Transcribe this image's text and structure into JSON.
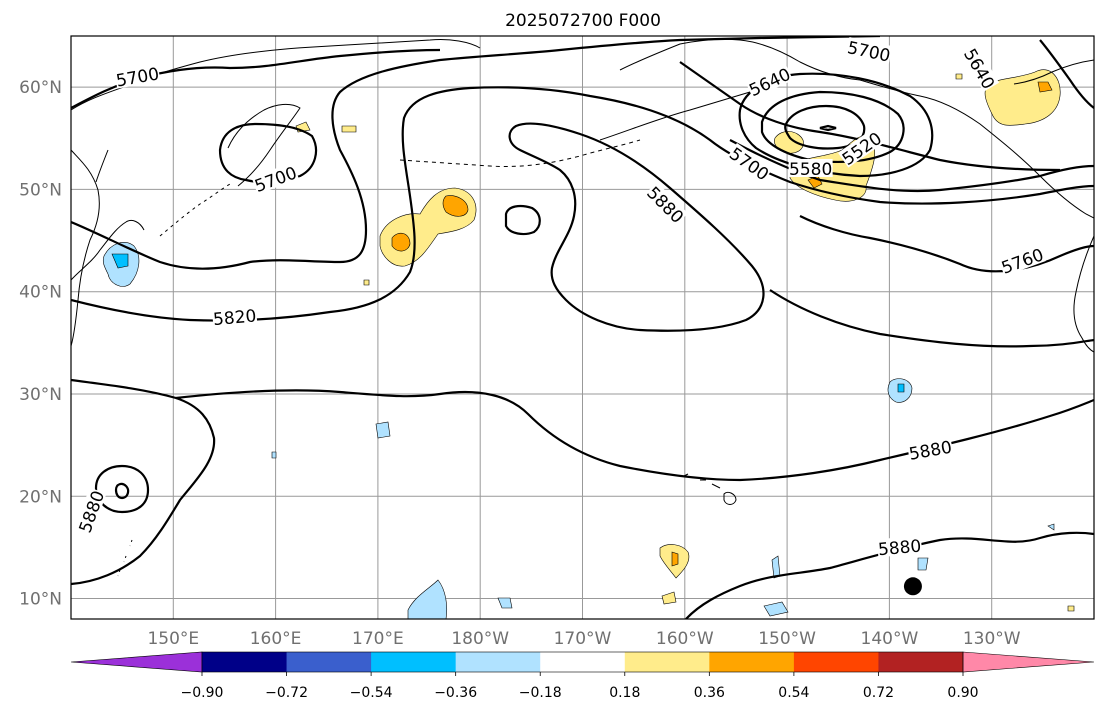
{
  "title": "2025072700 F000",
  "map": {
    "lon_ticks": [
      {
        "lon": 150,
        "label": "150°E"
      },
      {
        "lon": 160,
        "label": "160°E"
      },
      {
        "lon": 170,
        "label": "170°E"
      },
      {
        "lon": 180,
        "label": "180°W"
      },
      {
        "lon": 190,
        "label": "170°W"
      },
      {
        "lon": 200,
        "label": "160°W"
      },
      {
        "lon": 210,
        "label": "150°W"
      },
      {
        "lon": 220,
        "label": "140°W"
      },
      {
        "lon": 230,
        "label": "130°W"
      }
    ],
    "lat_ticks": [
      {
        "lat": 10,
        "label": "10°N"
      },
      {
        "lat": 20,
        "label": "20°N"
      },
      {
        "lat": 30,
        "label": "30°N"
      },
      {
        "lat": 40,
        "label": "40°N"
      },
      {
        "lat": 50,
        "label": "50°N"
      },
      {
        "lat": 60,
        "label": "60°N"
      }
    ],
    "lon_range": [
      140,
      240
    ],
    "lat_range": [
      8,
      65
    ],
    "grid": true,
    "contour_labels": [
      {
        "text": "5700",
        "lon": 146.5,
        "lat": 61.0,
        "rot": -10
      },
      {
        "text": "5700",
        "lon": 160.0,
        "lat": 51.0,
        "rot": -20
      },
      {
        "text": "5820",
        "lon": 156.0,
        "lat": 37.5,
        "rot": -5
      },
      {
        "text": "5880",
        "lon": 142.0,
        "lat": 18.5,
        "rot": -70
      },
      {
        "text": "5700",
        "lon": 218.0,
        "lat": 63.5,
        "rot": 12
      },
      {
        "text": "5640",
        "lon": 228.8,
        "lat": 61.8,
        "rot": 60
      },
      {
        "text": "5640",
        "lon": 208.3,
        "lat": 60.5,
        "rot": -25
      },
      {
        "text": "5700",
        "lon": 206.3,
        "lat": 52.5,
        "rot": 35
      },
      {
        "text": "5880",
        "lon": 198.1,
        "lat": 48.5,
        "rot": 45
      },
      {
        "text": "5580",
        "lon": 212.3,
        "lat": 52.0,
        "rot": 0
      },
      {
        "text": "5520",
        "lon": 217.3,
        "lat": 54.0,
        "rot": -35
      },
      {
        "text": "5760",
        "lon": 233.0,
        "lat": 43.0,
        "rot": -20
      },
      {
        "text": "5880",
        "lon": 224.0,
        "lat": 24.5,
        "rot": -10
      },
      {
        "text": "5880",
        "lon": 221.0,
        "lat": 15.0,
        "rot": -5
      }
    ],
    "marker": {
      "lon": 222.3,
      "lat": 11.2
    }
  },
  "colorbar": {
    "colors": [
      "#9b30d9",
      "#000088",
      "#3a5fcd",
      "#00bfff",
      "#b0e2ff",
      "#ffffff",
      "#ffec8b",
      "#ffa500",
      "#ff4500",
      "#b22222",
      "#ff88a8"
    ],
    "labels": [
      "−0.90",
      "−0.72",
      "−0.54",
      "−0.36",
      "−0.18",
      "0.18",
      "0.36",
      "0.54",
      "0.72",
      "0.90"
    ],
    "boundaries": [
      -0.9,
      -0.72,
      -0.54,
      -0.36,
      -0.18,
      0.18,
      0.36,
      0.54,
      0.72,
      0.9
    ]
  }
}
